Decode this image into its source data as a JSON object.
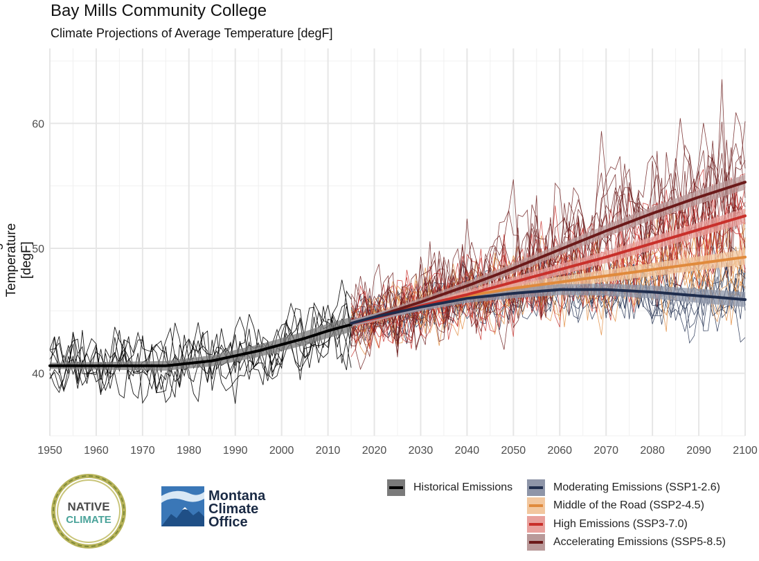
{
  "header": {
    "title": "Bay Mills Community College",
    "subtitle": "Climate Projections of Average Temperature [degF]"
  },
  "logos": {
    "native_top": "NATIVE",
    "native_bottom": "CLIMATE",
    "mco_line1": "Montana",
    "mco_line2": "Climate",
    "mco_line3": "Office"
  },
  "legend": {
    "items": [
      {
        "label": "Historical Emissions",
        "color": "#000000",
        "fill": "#7a7a7a"
      },
      {
        "label": "Moderating Emissions (SSP1-2.6)",
        "color": "#1f2d4d",
        "fill": "#8e95a8"
      },
      {
        "label": "Middle of the Road (SSP2-4.5)",
        "color": "#e08a3c",
        "fill": "#f2c79f"
      },
      {
        "label": "High Emissions (SSP3-7.0)",
        "color": "#c8302b",
        "fill": "#e8a19d"
      },
      {
        "label": "Accelerating Emissions (SSP5-8.5)",
        "color": "#6b1a1a",
        "fill": "#b99a9a"
      }
    ]
  },
  "chart_data": {
    "type": "line",
    "title": "Bay Mills Community College",
    "subtitle": "Climate Projections of Average Temperature [degF]",
    "xlabel": "",
    "ylabel": "Average Temperature [degF]",
    "xlim": [
      1950,
      2100
    ],
    "ylim": [
      35,
      66
    ],
    "x_ticks": [
      1950,
      1960,
      1970,
      1980,
      1990,
      2000,
      2010,
      2020,
      2030,
      2040,
      2050,
      2060,
      2070,
      2080,
      2090,
      2100
    ],
    "y_ticks": [
      40,
      50,
      60
    ],
    "series": [
      {
        "name": "Historical Emissions",
        "color": "#000000",
        "band": "#7a7a7a",
        "x": [
          1950,
          1960,
          1970,
          1975,
          1980,
          1985,
          1990,
          1995,
          2000,
          2005,
          2010,
          2015
        ],
        "y": [
          40.6,
          40.6,
          40.6,
          40.6,
          40.8,
          41.0,
          41.4,
          41.8,
          42.3,
          42.8,
          43.4,
          43.9
        ],
        "ensemble_spread": 1.6
      },
      {
        "name": "Moderating Emissions (SSP1-2.6)",
        "color": "#1f2d4d",
        "band": "#8e95a8",
        "x": [
          2015,
          2020,
          2030,
          2040,
          2050,
          2060,
          2070,
          2080,
          2090,
          2100
        ],
        "y": [
          44.0,
          44.5,
          45.3,
          46.0,
          46.4,
          46.7,
          46.7,
          46.5,
          46.2,
          45.9
        ],
        "ensemble_spread": 1.5
      },
      {
        "name": "Middle of the Road (SSP2-4.5)",
        "color": "#e08a3c",
        "band": "#f2c79f",
        "x": [
          2015,
          2020,
          2030,
          2040,
          2050,
          2060,
          2070,
          2080,
          2090,
          2100
        ],
        "y": [
          44.0,
          44.5,
          45.4,
          46.2,
          46.8,
          47.3,
          47.8,
          48.3,
          48.8,
          49.3
        ],
        "ensemble_spread": 1.8
      },
      {
        "name": "High Emissions (SSP3-7.0)",
        "color": "#c8302b",
        "band": "#e8a19d",
        "x": [
          2015,
          2020,
          2030,
          2040,
          2050,
          2060,
          2070,
          2080,
          2090,
          2100
        ],
        "y": [
          44.0,
          44.4,
          45.4,
          46.3,
          47.3,
          48.3,
          49.3,
          50.4,
          51.5,
          52.6
        ],
        "ensemble_spread": 2.2
      },
      {
        "name": "Accelerating Emissions (SSP5-8.5)",
        "color": "#6b1a1a",
        "band": "#b99a9a",
        "x": [
          2015,
          2020,
          2030,
          2040,
          2050,
          2060,
          2070,
          2080,
          2090,
          2100
        ],
        "y": [
          44.0,
          44.5,
          45.7,
          47.0,
          48.4,
          49.9,
          51.4,
          52.8,
          54.1,
          55.3
        ],
        "ensemble_spread": 2.8
      }
    ]
  }
}
